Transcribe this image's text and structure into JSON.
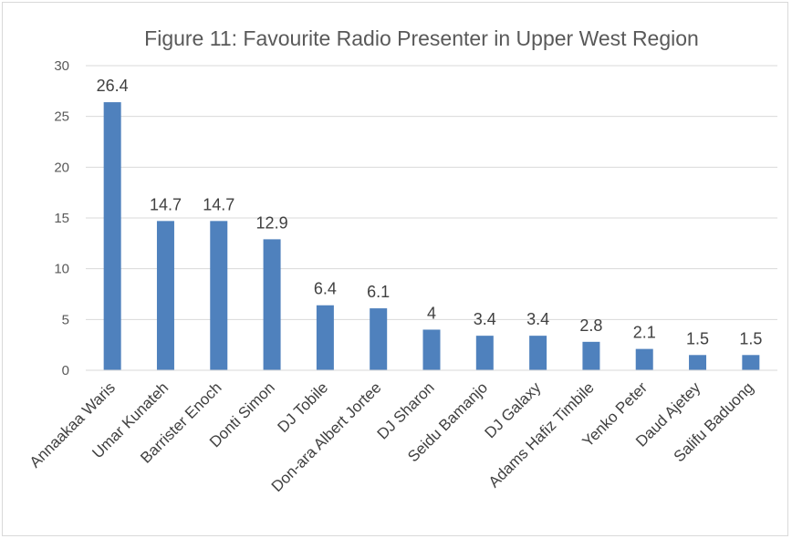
{
  "chart_data": {
    "type": "bar",
    "title": "Figure 11: Favourite Radio Presenter in Upper West Region",
    "xlabel": "",
    "ylabel": "",
    "ylim": [
      0,
      30
    ],
    "yticks": [
      0,
      5,
      10,
      15,
      20,
      25,
      30
    ],
    "grid": true,
    "legend": "none",
    "bar_color": "#4f81bd",
    "categories": [
      "Annaakaa Waris",
      "Umar Kunateh",
      "Barrister Enoch",
      "Donti Simon",
      "DJ Tobile",
      "Don-ara Albert Jortee",
      "DJ Sharon",
      "Seidu Bamanjo",
      "DJ Galaxy",
      "Adams Hafiz Timbile",
      "Yenko Peter",
      "Daud Ajetey",
      "Salifu Baduong"
    ],
    "values": [
      26.4,
      14.7,
      14.7,
      12.9,
      6.4,
      6.1,
      4,
      3.4,
      3.4,
      2.8,
      2.1,
      1.5,
      1.5
    ],
    "value_labels": [
      "26.4",
      "14.7",
      "14.7",
      "12.9",
      "6.4",
      "6.1",
      "4",
      "3.4",
      "3.4",
      "2.8",
      "2.1",
      "1.5",
      "1.5"
    ]
  }
}
